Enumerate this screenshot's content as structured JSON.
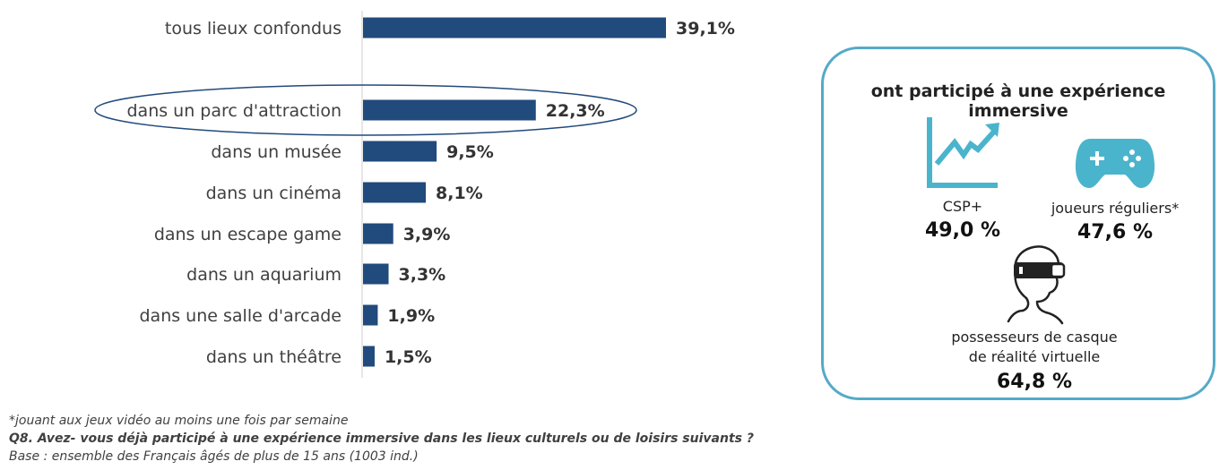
{
  "chart_data": {
    "type": "bar",
    "orientation": "horizontal",
    "categories": [
      "tous lieux confondus",
      "dans un parc d'attraction",
      "dans un musée",
      "dans un cinéma",
      "dans un escape game",
      "dans un aquarium",
      "dans une salle d'arcade",
      "dans un théâtre"
    ],
    "values": [
      39.1,
      22.3,
      9.5,
      8.1,
      3.9,
      3.3,
      1.9,
      1.5
    ],
    "value_labels": [
      "39,1%",
      "22,3%",
      "9,5%",
      "8,1%",
      "3,9%",
      "3,3%",
      "1,9%",
      "1,5%"
    ],
    "highlighted_category": "dans un parc d'attraction",
    "bar_color": "#214a7d",
    "grid": false
  },
  "box": {
    "title": "ont participé à une expérience immersive",
    "border_color": "#55aac7",
    "icon_color": "#4ab4cc",
    "items": [
      {
        "icon": "line-chart-icon",
        "label": "CSP+",
        "value": "49,0 %"
      },
      {
        "icon": "gamepad-icon",
        "label": "joueurs réguliers*",
        "value": "47,6 %"
      },
      {
        "icon": "vr-headset-icon",
        "label_line1": "possesseurs de casque",
        "label_line2": "de réalité virtuelle",
        "value": "64,8 %"
      }
    ]
  },
  "notes": {
    "footnote": "*jouant aux jeux vidéo au moins une fois par semaine",
    "question": "Q8. Avez- vous déjà participé à une expérience immersive dans les lieux culturels ou de loisirs suivants ?",
    "base": "Base : ensemble des Français âgés de plus de 15 ans (1003 ind.)"
  }
}
